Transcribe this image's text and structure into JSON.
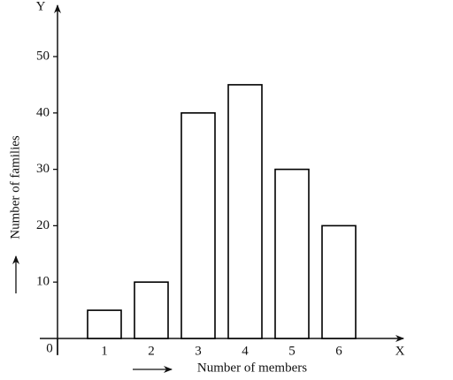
{
  "chart_data": {
    "type": "bar",
    "categories": [
      "1",
      "2",
      "3",
      "4",
      "5",
      "6"
    ],
    "values": [
      5,
      10,
      40,
      45,
      30,
      20
    ],
    "color": "#ffffff",
    "edge_color": "#000000",
    "ylim": [
      0,
      59
    ],
    "yticks": [
      0,
      10,
      20,
      30,
      40,
      50
    ],
    "grid": false,
    "xlabel": "Number of members",
    "ylabel": "Number of families",
    "x_axis_end_label": "X",
    "y_axis_end_label": "Y"
  }
}
